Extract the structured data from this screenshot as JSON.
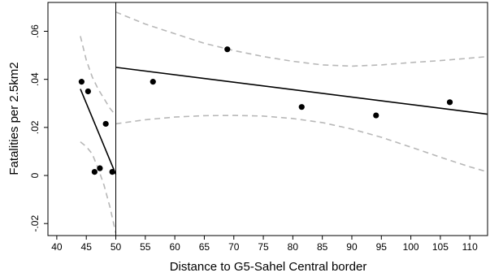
{
  "chart_data": {
    "type": "scatter",
    "title": "",
    "xlabel": "Distance to G5-Sahel Central border",
    "ylabel": "Fatalities per 2.5km2",
    "xlim": [
      38.5,
      113
    ],
    "ylim": [
      -0.025,
      0.072
    ],
    "x_ticks": [
      40,
      45,
      50,
      55,
      60,
      65,
      70,
      75,
      80,
      85,
      90,
      95,
      100,
      105,
      110
    ],
    "x_tick_labels": [
      "40",
      "45",
      "50",
      "55",
      "60",
      "65",
      "70",
      "75",
      "80",
      "85",
      "90",
      "95",
      "100",
      "105",
      "110"
    ],
    "y_ticks": [
      -0.02,
      0,
      0.02,
      0.04,
      0.06
    ],
    "y_tick_labels": [
      "-.02",
      "0",
      ".02",
      ".04",
      ".06"
    ],
    "grid": false,
    "legend": "none",
    "cutoff_x": 50,
    "points": [
      {
        "x": 44.2,
        "y": 0.039
      },
      {
        "x": 45.3,
        "y": 0.035
      },
      {
        "x": 46.4,
        "y": 0.0015
      },
      {
        "x": 47.3,
        "y": 0.003
      },
      {
        "x": 48.3,
        "y": 0.0215
      },
      {
        "x": 49.4,
        "y": 0.0015
      },
      {
        "x": 56.3,
        "y": 0.039
      },
      {
        "x": 68.9,
        "y": 0.0525
      },
      {
        "x": 81.5,
        "y": 0.0285
      },
      {
        "x": 94.1,
        "y": 0.025
      },
      {
        "x": 106.6,
        "y": 0.0305
      }
    ],
    "fit_left": {
      "x": [
        44,
        50
      ],
      "y": [
        0.036,
        0.0005
      ]
    },
    "fit_right": {
      "x": [
        50,
        113
      ],
      "y": [
        0.045,
        0.0255
      ]
    },
    "ci_left_upper": {
      "x": [
        44,
        45,
        46,
        47,
        48,
        49,
        50
      ],
      "y": [
        0.058,
        0.048,
        0.041,
        0.036,
        0.032,
        0.028,
        0.025
      ]
    },
    "ci_left_lower": {
      "x": [
        44,
        45,
        46,
        47,
        48,
        49,
        50
      ],
      "y": [
        0.014,
        0.012,
        0.009,
        0.003,
        -0.004,
        -0.013,
        -0.024
      ]
    },
    "ci_right_upper": {
      "x": [
        50,
        55,
        60,
        65,
        70,
        75,
        80,
        85,
        90,
        95,
        100,
        105,
        110,
        113
      ],
      "y": [
        0.068,
        0.063,
        0.059,
        0.055,
        0.052,
        0.0495,
        0.0475,
        0.046,
        0.0455,
        0.046,
        0.047,
        0.0478,
        0.0488,
        0.0495
      ]
    },
    "ci_right_lower": {
      "x": [
        50,
        55,
        60,
        65,
        70,
        75,
        80,
        85,
        90,
        95,
        100,
        105,
        110,
        113
      ],
      "y": [
        0.0215,
        0.0232,
        0.0243,
        0.0249,
        0.025,
        0.0247,
        0.0237,
        0.022,
        0.0193,
        0.0159,
        0.0118,
        0.0076,
        0.0036,
        0.0015
      ]
    },
    "colors": {
      "points": "#000000",
      "fit": "#000000",
      "ci": "#b8b8b8",
      "frame": "#000000"
    }
  }
}
